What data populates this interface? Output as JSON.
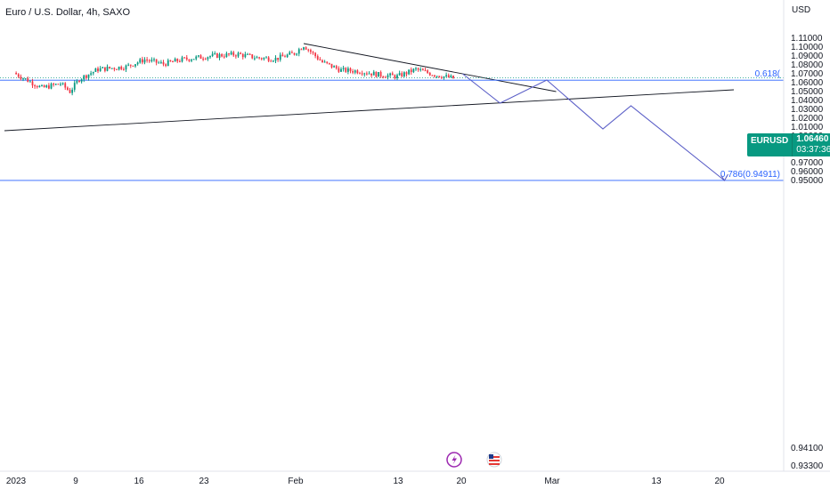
{
  "header": {
    "title": "Euro / U.S. Dollar, 4h, SAXO",
    "currency": "USD"
  },
  "price_badge": {
    "symbol": "EURUSD",
    "price": "1.06460",
    "countdown": "03:37:36"
  },
  "colors": {
    "up": "#089981",
    "down": "#f23645",
    "projection": "#5b5fc7",
    "fib": "#2962ff",
    "trendline": "#131722"
  },
  "chart_data": {
    "type": "line",
    "title": "Euro / U.S. Dollar, 4h, SAXO",
    "xlabel": "",
    "ylabel": "",
    "ylim": [
      0.93,
      1.116
    ],
    "y_ticks": [
      "1.11000",
      "1.10000",
      "1.09000",
      "1.08000",
      "1.07000",
      "1.06000",
      "1.05000",
      "1.04000",
      "1.03000",
      "1.02000",
      "1.01000",
      "1.00000",
      "0.99000",
      "0.98000",
      "0.97000",
      "0.96000",
      "0.95000",
      "0.94100",
      "0.93300"
    ],
    "x_ticks": [
      "2023",
      "9",
      "16",
      "23",
      "Feb",
      "13",
      "20",
      "Mar",
      "13",
      "20"
    ],
    "price_close_path": [
      {
        "x": "2023-01-02",
        "y": 1.07
      },
      {
        "x": "2023-01-05",
        "y": 1.053
      },
      {
        "x": "2023-01-07",
        "y": 1.058
      },
      {
        "x": "2023-01-08",
        "y": 1.049
      },
      {
        "x": "2023-01-09",
        "y": 1.063
      },
      {
        "x": "2023-01-11",
        "y": 1.074
      },
      {
        "x": "2023-01-14",
        "y": 1.077
      },
      {
        "x": "2023-01-16",
        "y": 1.085
      },
      {
        "x": "2023-01-18",
        "y": 1.08
      },
      {
        "x": "2023-01-20",
        "y": 1.085
      },
      {
        "x": "2023-01-23",
        "y": 1.089
      },
      {
        "x": "2023-01-26",
        "y": 1.091
      },
      {
        "x": "2023-01-28",
        "y": 1.087
      },
      {
        "x": "2023-01-30",
        "y": 1.086
      },
      {
        "x": "2023-02-01",
        "y": 1.092
      },
      {
        "x": "2023-02-02",
        "y": 1.101
      },
      {
        "x": "2023-02-04",
        "y": 1.082
      },
      {
        "x": "2023-02-06",
        "y": 1.073
      },
      {
        "x": "2023-02-08",
        "y": 1.072
      },
      {
        "x": "2023-02-10",
        "y": 1.068
      },
      {
        "x": "2023-02-12",
        "y": 1.066
      },
      {
        "x": "2023-02-14",
        "y": 1.074
      },
      {
        "x": "2023-02-16",
        "y": 1.068
      },
      {
        "x": "2023-02-18",
        "y": 1.064
      }
    ],
    "projection": [
      {
        "x": "2023-02-19",
        "y": 1.069
      },
      {
        "x": "2023-02-23",
        "y": 1.036
      },
      {
        "x": "2023-02-28",
        "y": 1.062
      },
      {
        "x": "2023-03-06",
        "y": 1.007
      },
      {
        "x": "2023-03-09",
        "y": 1.033
      },
      {
        "x": "2023-03-19",
        "y": 0.949
      }
    ],
    "trendlines": [
      {
        "from": {
          "x": "2023-02-02",
          "y": 1.103
        },
        "to": {
          "x": "2023-03-01",
          "y": 1.049
        }
      },
      {
        "from": {
          "x": "2023-01-01",
          "y": 1.005
        },
        "to": {
          "x": "2023-03-20",
          "y": 1.051
        }
      }
    ],
    "fib_levels": [
      {
        "label": "0.618(",
        "value": 1.0618
      },
      {
        "label": "0.786(0.94911)",
        "value": 0.94911
      }
    ],
    "last_price": 1.0646
  }
}
